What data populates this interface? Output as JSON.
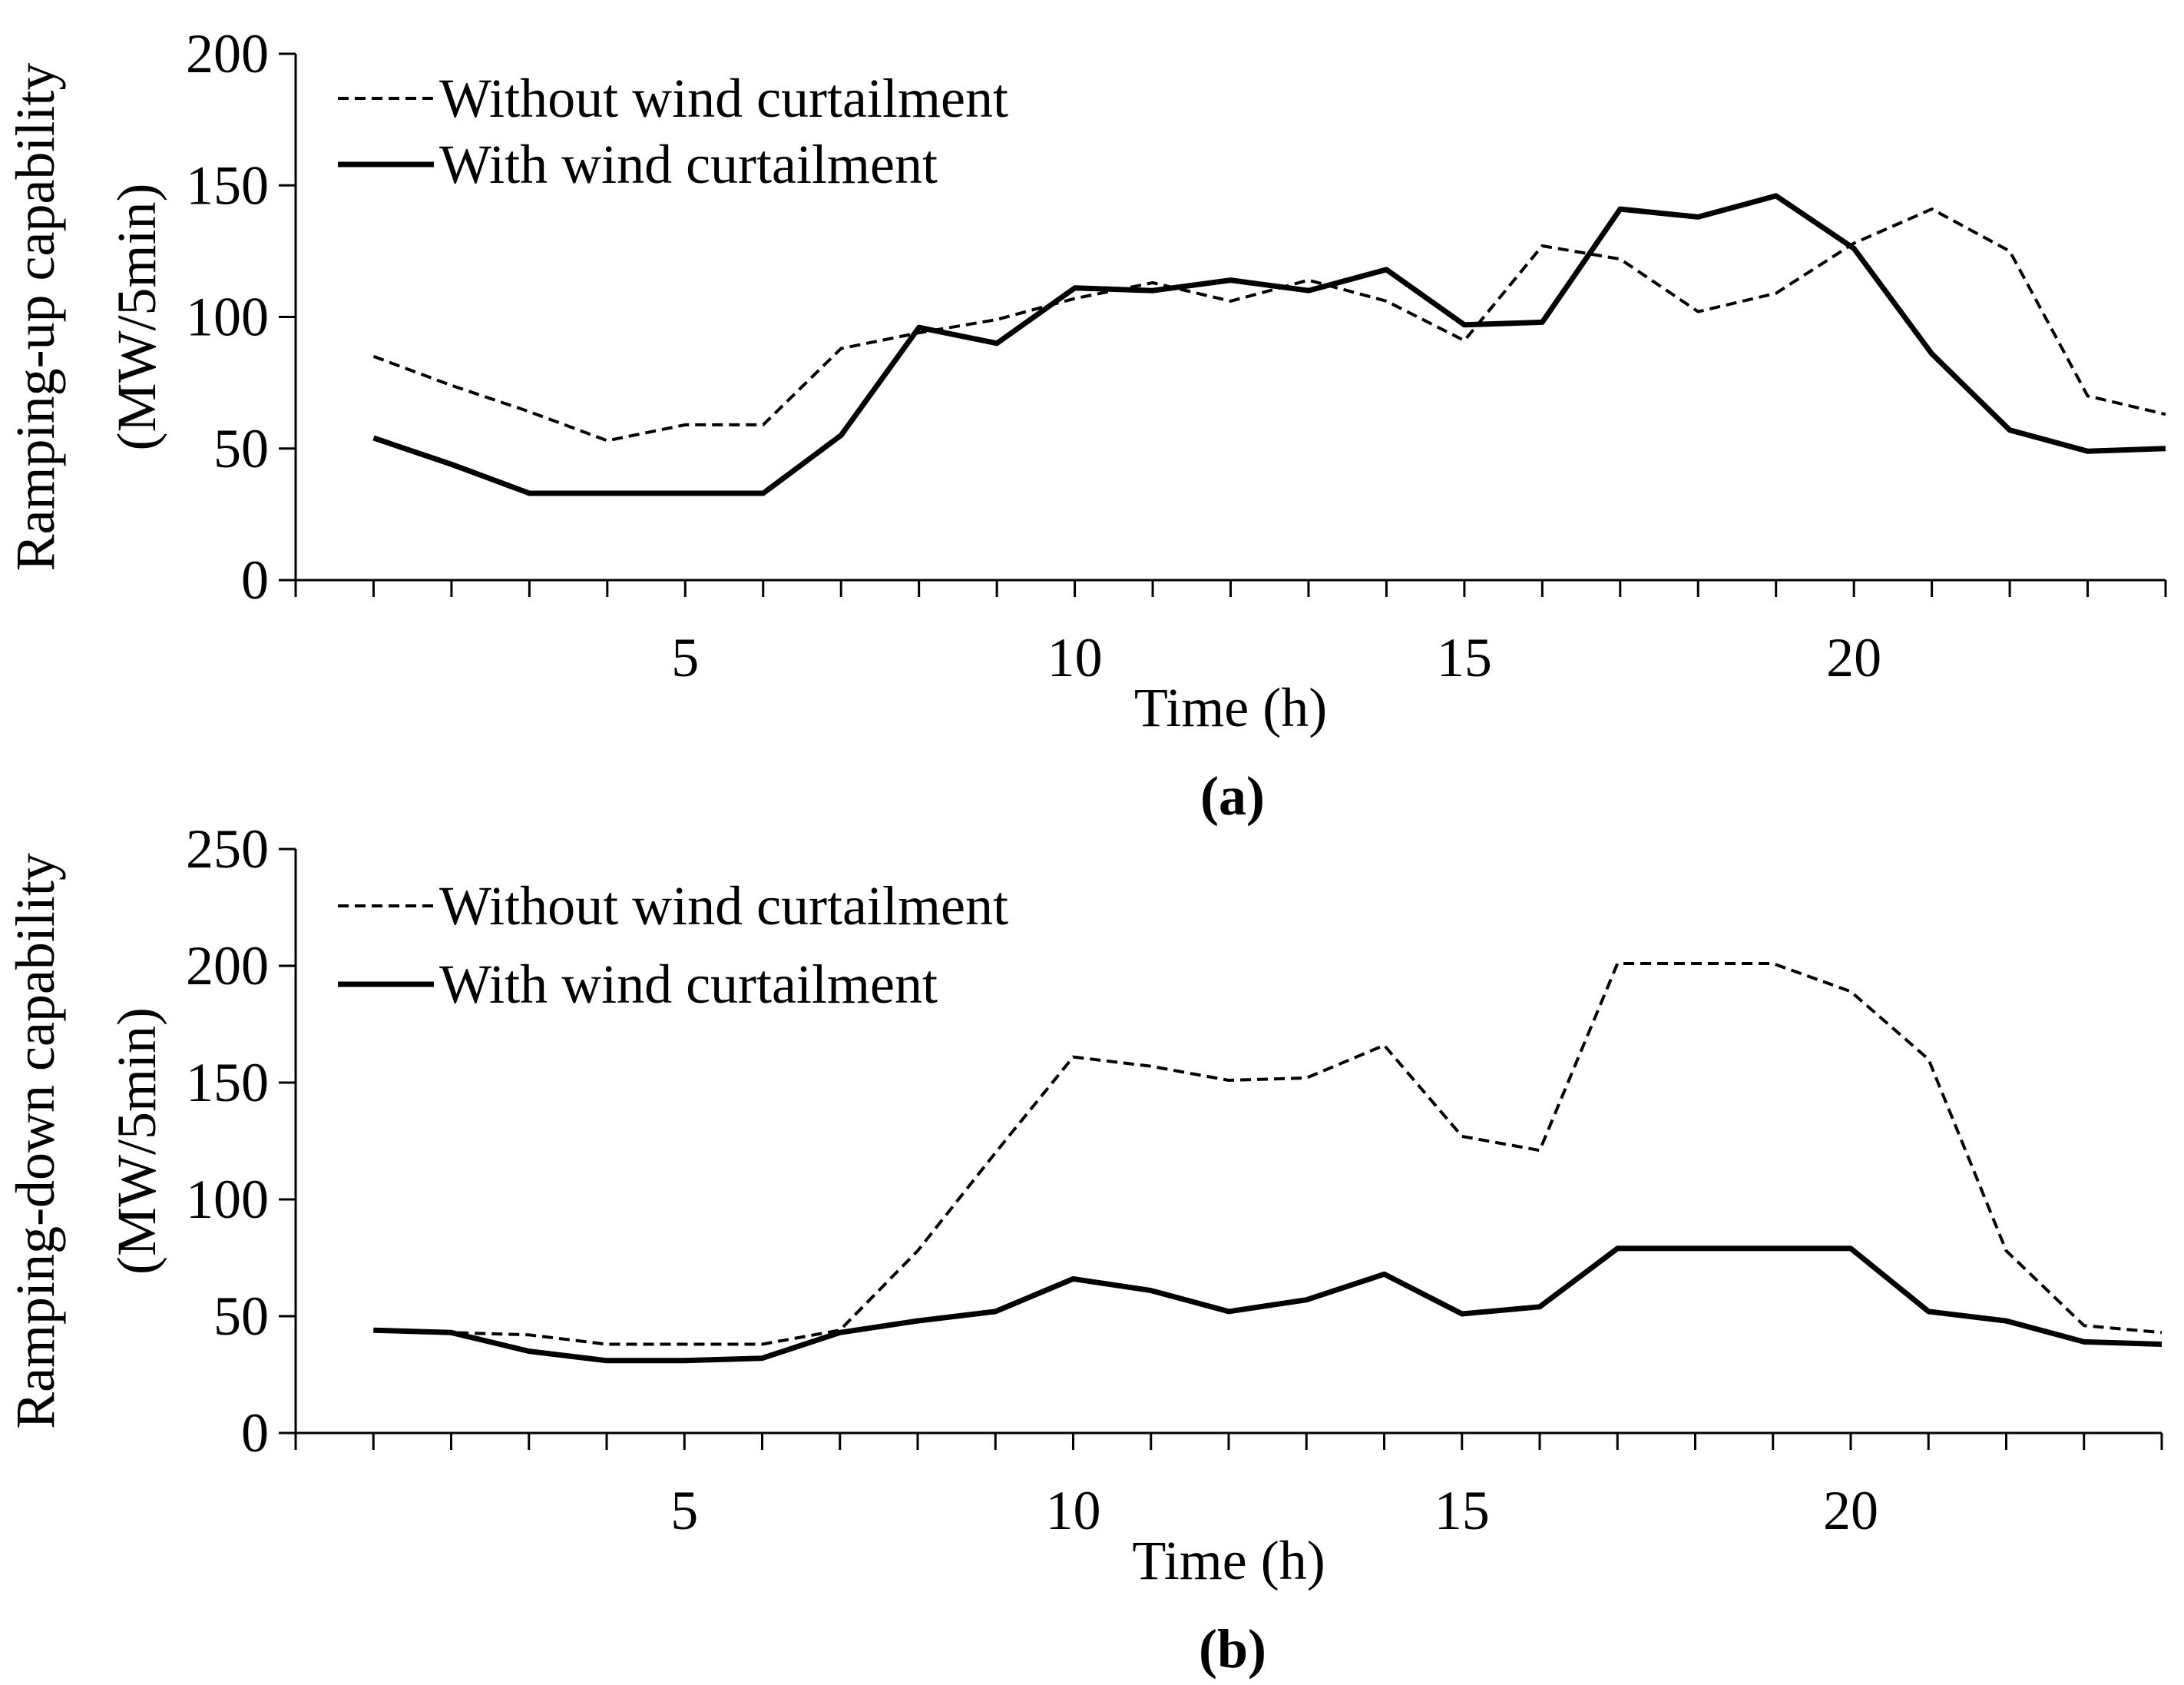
{
  "chart_data": [
    {
      "type": "line",
      "panel": "a",
      "caption": "(a)",
      "xlabel": "Time (h)",
      "ylabel_lines": [
        "Ramping-up capability",
        "(MW/5min)"
      ],
      "ylim": [
        0,
        200
      ],
      "yticks": [
        0,
        50,
        100,
        150,
        200
      ],
      "xlim": [
        0,
        24
      ],
      "xticks_labeled": [
        5,
        10,
        15,
        20
      ],
      "x": [
        1,
        2,
        3,
        4,
        5,
        6,
        7,
        8,
        9,
        10,
        11,
        12,
        13,
        14,
        15,
        16,
        17,
        18,
        19,
        20,
        21,
        22,
        23,
        24
      ],
      "legend_position": "top-left",
      "series": [
        {
          "name": "Without wind curtailment",
          "style": "dashed",
          "values": [
            85,
            74,
            64,
            53,
            59,
            59,
            88,
            94,
            99,
            107,
            113,
            106,
            114,
            106,
            91,
            127,
            122,
            102,
            109,
            128,
            141,
            125,
            70,
            63
          ]
        },
        {
          "name": "With wind curtailment",
          "style": "solid",
          "values": [
            54,
            44,
            33,
            33,
            33,
            33,
            55,
            96,
            90,
            111,
            110,
            114,
            110,
            118,
            97,
            98,
            141,
            138,
            146,
            126,
            86,
            57,
            49,
            50
          ]
        }
      ]
    },
    {
      "type": "line",
      "panel": "b",
      "caption": "(b)",
      "xlabel": "Time (h)",
      "ylabel_lines": [
        "Ramping-down capability",
        "(MW/5min)"
      ],
      "ylim": [
        0,
        250
      ],
      "yticks": [
        0,
        50,
        100,
        150,
        200,
        250
      ],
      "xlim": [
        0,
        24
      ],
      "xticks_labeled": [
        5,
        10,
        15,
        20
      ],
      "x": [
        1,
        2,
        3,
        4,
        5,
        6,
        7,
        8,
        9,
        10,
        11,
        12,
        13,
        14,
        15,
        16,
        17,
        18,
        19,
        20,
        21,
        22,
        23,
        24
      ],
      "legend_position": "top-left",
      "series": [
        {
          "name": "Without wind curtailment",
          "style": "dashed",
          "values": [
            44,
            43,
            42,
            38,
            38,
            38,
            44,
            78,
            120,
            161,
            157,
            151,
            152,
            166,
            127,
            121,
            201,
            201,
            201,
            189,
            160,
            78,
            46,
            43
          ]
        },
        {
          "name": "With wind curtailment",
          "style": "solid",
          "values": [
            44,
            43,
            35,
            31,
            31,
            32,
            43,
            48,
            52,
            66,
            61,
            52,
            57,
            68,
            51,
            54,
            79,
            79,
            79,
            79,
            52,
            48,
            39,
            38
          ]
        }
      ]
    }
  ]
}
